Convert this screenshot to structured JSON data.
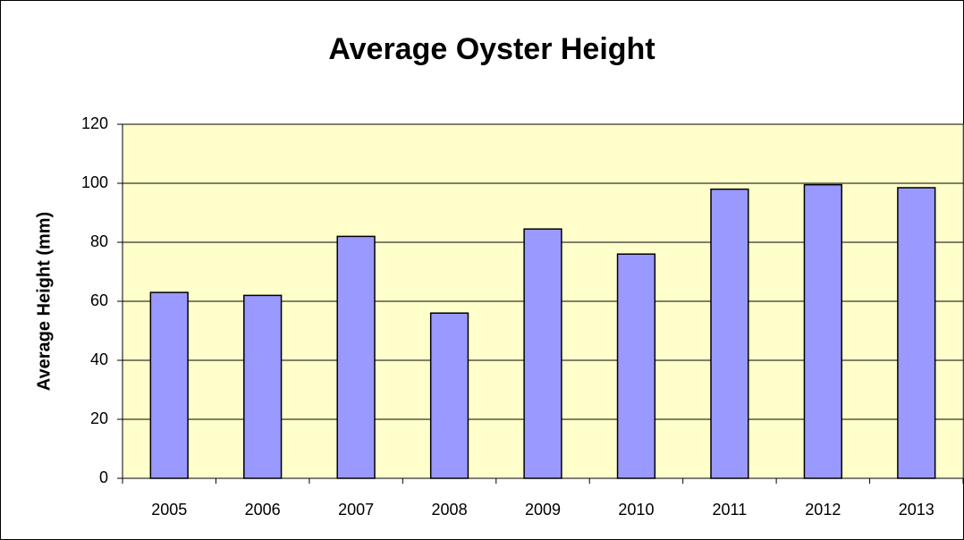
{
  "chart_data": {
    "type": "bar",
    "title": "Average Oyster Height",
    "y_label": "Average Height (mm)",
    "categories": [
      "2005",
      "2006",
      "2007",
      "2008",
      "2009",
      "2010",
      "2011",
      "2012",
      "2013"
    ],
    "values": [
      63,
      62,
      82,
      56,
      84.5,
      76,
      98,
      99.5,
      98.5
    ],
    "color": "#9999ff",
    "plot_background": "#ffffcc",
    "ylim": [
      0,
      120
    ],
    "yticks": [
      0,
      20,
      40,
      60,
      80,
      100,
      120
    ],
    "grid": true
  }
}
